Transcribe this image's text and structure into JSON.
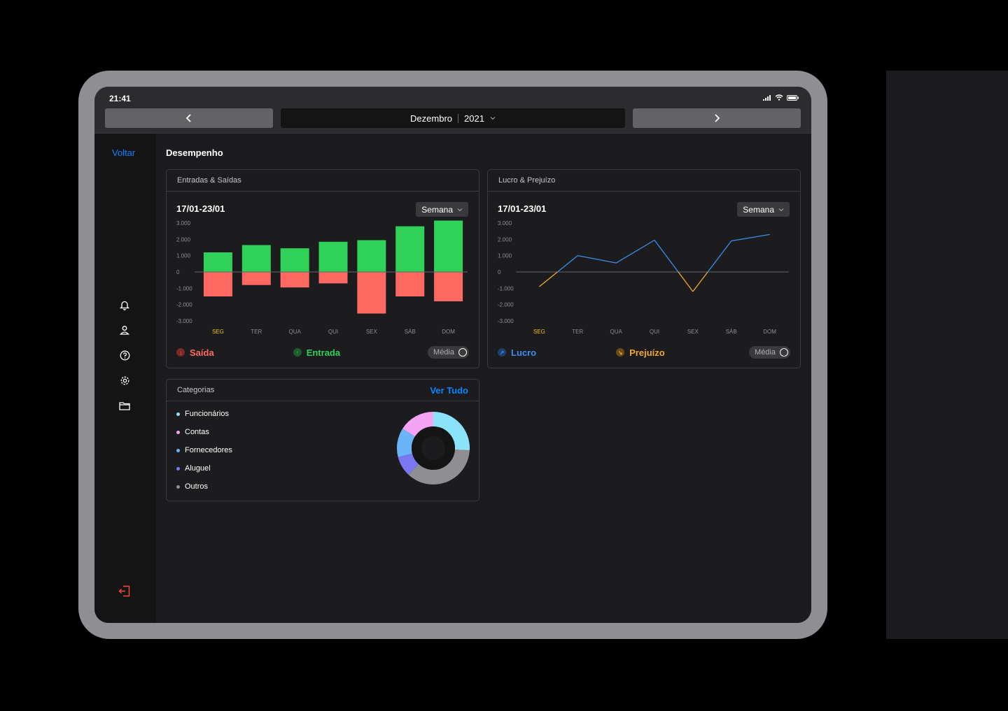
{
  "status_bar": {
    "time": "21:41"
  },
  "header": {
    "month": "Dezembro",
    "year": "2021"
  },
  "sidebar": {
    "back_label": "Voltar"
  },
  "page": {
    "title": "Desempenho"
  },
  "days": [
    "SEG",
    "TER",
    "QUA",
    "QUI",
    "SEX",
    "SÁB",
    "DOM"
  ],
  "y_ticks": [
    "3.000",
    "2.000",
    "1.000",
    "0",
    "-1.000",
    "-2.000",
    "-3.000"
  ],
  "cards": {
    "flows": {
      "title": "Entradas & Saídas",
      "range": "17/01-23/01",
      "period": "Semana",
      "legend_out": "Saída",
      "legend_in": "Entrada",
      "avg_label": "Média"
    },
    "profit": {
      "title": "Lucro & Prejuízo",
      "range": "17/01-23/01",
      "period": "Semana",
      "legend_profit": "Lucro",
      "legend_loss": "Prejuízo",
      "avg_label": "Média"
    },
    "categories": {
      "title": "Categorias",
      "see_all": "Ver Tudo",
      "items": [
        {
          "label": "Funcionários",
          "color": "#8be3f9",
          "share": 0.26
        },
        {
          "label": "Contas",
          "color": "#f5a3f5",
          "share": 0.16
        },
        {
          "label": "Fornecedores",
          "color": "#6cb4f8",
          "share": 0.13
        },
        {
          "label": "Aluguel",
          "color": "#7b77f2",
          "share": 0.09
        },
        {
          "label": "Outros",
          "color": "#8e8e93",
          "share": 0.36
        }
      ]
    }
  },
  "chart_data": [
    {
      "type": "bar",
      "categories": [
        "SEG",
        "TER",
        "QUA",
        "QUI",
        "SEX",
        "SÁB",
        "DOM"
      ],
      "ylim": [
        -3000,
        3000
      ],
      "series": [
        {
          "name": "Entrada",
          "color": "#30d158",
          "values": [
            1200,
            1650,
            1450,
            1850,
            1950,
            2800,
            3150
          ]
        },
        {
          "name": "Saída",
          "color": "#ff6961",
          "values": [
            -1500,
            -800,
            -950,
            -700,
            -2550,
            -1500,
            -1800
          ]
        }
      ]
    },
    {
      "type": "line",
      "categories": [
        "SEG",
        "TER",
        "QUA",
        "QUI",
        "SEX",
        "SÁB",
        "DOM"
      ],
      "ylim": [
        -3000,
        3000
      ],
      "x": [
        0,
        1,
        2,
        3,
        4,
        5,
        6
      ],
      "series": [
        {
          "name": "Lucro",
          "color": "#3a8ef0",
          "values": [
            -900,
            1000,
            550,
            1950,
            -1200,
            1900,
            2300
          ]
        }
      ],
      "negative_color": "#f0a830"
    }
  ]
}
